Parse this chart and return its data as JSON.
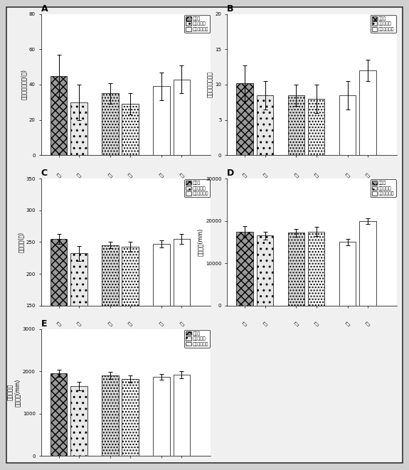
{
  "panel_A": {
    "title": "A",
    "ylabel": "隐れ場所在時間(秒)",
    "ylim": [
      0,
      80
    ],
    "yticks": [
      0,
      20,
      40,
      60,
      80
    ],
    "groups": [
      {
        "bars": [
          {
            "val": 45,
            "err": 12,
            "type": "wt"
          },
          {
            "val": 30,
            "err": 10,
            "type": "het"
          }
        ]
      },
      {
        "bars": [
          {
            "val": 35,
            "err": 6,
            "type": "dot"
          },
          {
            "val": 29,
            "err": 6,
            "type": "dot2"
          }
        ]
      },
      {
        "bars": [
          {
            "val": 39,
            "err": 8,
            "type": "ko"
          },
          {
            "val": 43,
            "err": 8,
            "type": "ko2"
          }
        ]
      }
    ]
  },
  "panel_B": {
    "title": "B",
    "ylabel": "隐れ場所進入回数",
    "ylim": [
      0,
      20
    ],
    "yticks": [
      0,
      5,
      10,
      15,
      20
    ],
    "groups": [
      {
        "bars": [
          {
            "val": 10.2,
            "err": 2.5,
            "type": "wt"
          },
          {
            "val": 8.5,
            "err": 2.0,
            "type": "het"
          }
        ]
      },
      {
        "bars": [
          {
            "val": 8.5,
            "err": 1.5,
            "type": "dot"
          },
          {
            "val": 8.0,
            "err": 2.0,
            "type": "dot2"
          }
        ]
      },
      {
        "bars": [
          {
            "val": 8.5,
            "err": 2.0,
            "type": "ko"
          },
          {
            "val": 12.0,
            "err": 1.5,
            "type": "ko2"
          }
        ]
      }
    ]
  },
  "panel_C": {
    "title": "C",
    "ylabel": "活動時間(秒)",
    "ylim": [
      150,
      350
    ],
    "yticks": [
      150,
      200,
      250,
      300,
      350
    ],
    "groups": [
      {
        "bars": [
          {
            "val": 255,
            "err": 8,
            "type": "wt"
          },
          {
            "val": 232,
            "err": 12,
            "type": "het"
          }
        ]
      },
      {
        "bars": [
          {
            "val": 245,
            "err": 5,
            "type": "dot"
          },
          {
            "val": 243,
            "err": 8,
            "type": "dot2"
          }
        ]
      },
      {
        "bars": [
          {
            "val": 247,
            "err": 6,
            "type": "ko"
          },
          {
            "val": 255,
            "err": 8,
            "type": "ko2"
          }
        ]
      }
    ]
  },
  "panel_D": {
    "title": "D",
    "ylabel": "移動距離(mm)",
    "ylim": [
      0,
      30000
    ],
    "yticks": [
      0,
      10000,
      20000,
      30000
    ],
    "groups": [
      {
        "bars": [
          {
            "val": 17500,
            "err": 1200,
            "type": "wt"
          },
          {
            "val": 16500,
            "err": 1000,
            "type": "het"
          }
        ]
      },
      {
        "bars": [
          {
            "val": 17200,
            "err": 900,
            "type": "dot"
          },
          {
            "val": 17500,
            "err": 1100,
            "type": "dot2"
          }
        ]
      },
      {
        "bars": [
          {
            "val": 15000,
            "err": 800,
            "type": "ko"
          },
          {
            "val": 20000,
            "err": 700,
            "type": "ko2"
          }
        ]
      }
    ]
  },
  "panel_E": {
    "title": "E",
    "ylabel": "移動のない\n運動距離(mm)",
    "ylim": [
      0,
      3000
    ],
    "yticks": [
      0,
      1000,
      2000,
      3000
    ],
    "groups": [
      {
        "bars": [
          {
            "val": 1950,
            "err": 80,
            "type": "wt"
          },
          {
            "val": 1650,
            "err": 100,
            "type": "het"
          }
        ]
      },
      {
        "bars": [
          {
            "val": 1900,
            "err": 80,
            "type": "dot"
          },
          {
            "val": 1820,
            "err": 90,
            "type": "dot2"
          }
        ]
      },
      {
        "bars": [
          {
            "val": 1870,
            "err": 70,
            "type": "ko"
          },
          {
            "val": 1920,
            "err": 80,
            "type": "ko2"
          }
        ]
      }
    ]
  },
  "legend_labels": [
    "野生型",
    "ヘテロ接合",
    "ノックアウト"
  ],
  "xtick_groups": [
    [
      "雄",
      "雌"
    ],
    [
      "雄",
      "雌"
    ],
    [
      "雄",
      "雌"
    ]
  ],
  "figure_bg": "#d0d0d0",
  "inner_bg": "#f0f0f0"
}
